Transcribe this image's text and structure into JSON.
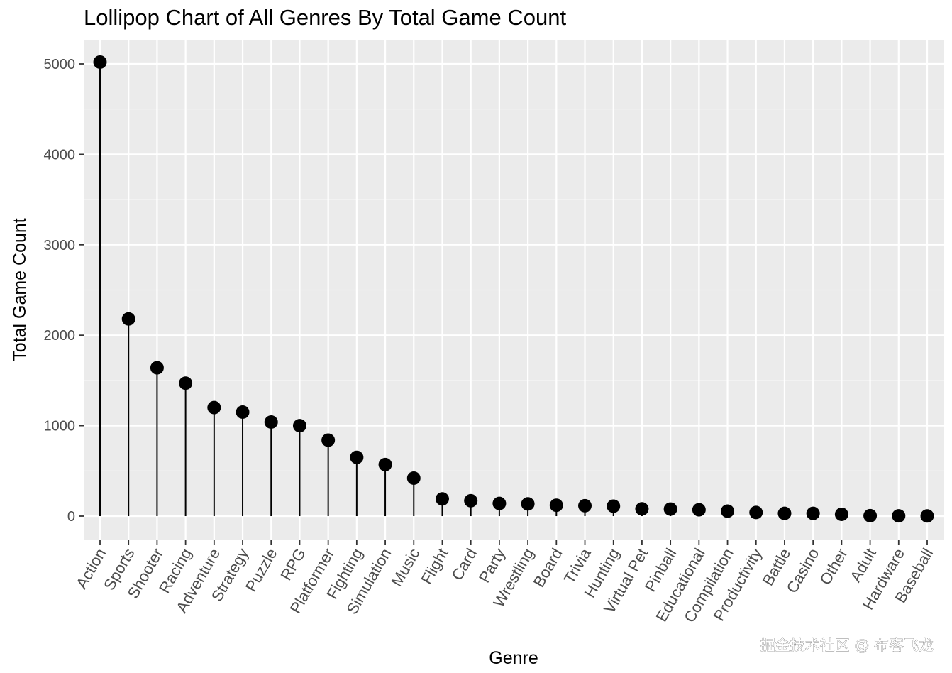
{
  "chart_data": {
    "type": "lollipop",
    "title": "Lollipop Chart of All Genres By Total Game Count",
    "xlabel": "Genre",
    "ylabel": "Total Game Count",
    "ylim": [
      -250,
      5200
    ],
    "yticks": [
      0,
      1000,
      2000,
      3000,
      4000,
      5000
    ],
    "grid": true,
    "categories": [
      "Action",
      "Sports",
      "Shooter",
      "Racing",
      "Adventure",
      "Strategy",
      "Puzzle",
      "RPG",
      "Platformer",
      "Fighting",
      "Simulation",
      "Music",
      "Flight",
      "Card",
      "Party",
      "Wrestling",
      "Board",
      "Trivia",
      "Hunting",
      "Virtual Pet",
      "Pinball",
      "Educational",
      "Compilation",
      "Productivity",
      "Battle",
      "Casino",
      "Other",
      "Adult",
      "Hardware",
      "Baseball"
    ],
    "values": [
      5020,
      2180,
      1640,
      1470,
      1200,
      1150,
      1040,
      1000,
      840,
      650,
      570,
      420,
      190,
      170,
      140,
      135,
      120,
      115,
      110,
      80,
      78,
      70,
      55,
      40,
      30,
      30,
      20,
      5,
      3,
      2
    ]
  },
  "watermark": "掘金技术社区 @ 布客飞龙",
  "colors": {
    "panel": "#ebebeb",
    "grid_major": "#ffffff",
    "point": "#000000"
  }
}
